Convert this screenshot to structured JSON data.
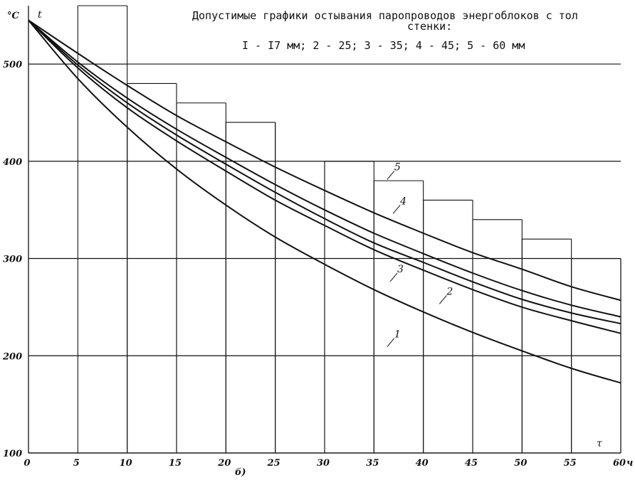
{
  "chart_data": {
    "type": "line",
    "title_line1": "Допустимые графики остывания паропроводов энергоблоков с тол",
    "title_line2": "стенки:",
    "subtitle": "I - I7 мм; 2 - 25; 3 - 35; 4 - 45; 5 - 60 мм",
    "x_unit": "ч",
    "x_symbol": "τ",
    "y_unit": "°С",
    "y_symbol": "t",
    "caption": "б)",
    "xlim": [
      0,
      60
    ],
    "ylim": [
      100,
      560
    ],
    "x_ticks": [
      "0",
      "5",
      "10",
      "15",
      "20",
      "25",
      "30",
      "35",
      "40",
      "45",
      "50",
      "55",
      "60"
    ],
    "y_ticks": [
      "100",
      "200",
      "300",
      "400",
      "500"
    ],
    "grid": true,
    "step_limits": [
      {
        "from": 5,
        "to": 10,
        "value": 560
      },
      {
        "from": 10,
        "to": 15,
        "value": 480
      },
      {
        "from": 15,
        "to": 20,
        "value": 460
      },
      {
        "from": 20,
        "to": 25,
        "value": 440
      },
      {
        "from": 30,
        "to": 35,
        "value": 400
      },
      {
        "from": 35,
        "to": 40,
        "value": 380
      },
      {
        "from": 40,
        "to": 45,
        "value": 360
      },
      {
        "from": 45,
        "to": 50,
        "value": 340
      },
      {
        "from": 50,
        "to": 55,
        "value": 320
      },
      {
        "from": 55,
        "to": 60,
        "value": 300
      }
    ],
    "step_line_500": {
      "from": 0,
      "to": 10,
      "value": 500
    },
    "x": [
      0,
      5,
      10,
      15,
      20,
      25,
      30,
      35,
      40,
      45,
      50,
      55,
      60
    ],
    "series": [
      {
        "name": "1",
        "values": [
          545,
          485,
          435,
          392,
          355,
          322,
          294,
          268,
          245,
          224,
          205,
          187,
          172
        ]
      },
      {
        "name": "2",
        "values": [
          545,
          496,
          455,
          421,
          390,
          360,
          334,
          309,
          288,
          268,
          250,
          236,
          223
        ]
      },
      {
        "name": "3",
        "values": [
          545,
          499,
          460,
          427,
          397,
          368,
          341,
          316,
          296,
          276,
          258,
          244,
          233
        ]
      },
      {
        "name": "4",
        "values": [
          545,
          502,
          465,
          433,
          404,
          376,
          350,
          326,
          305,
          285,
          267,
          252,
          240
        ]
      },
      {
        "name": "5",
        "values": [
          545,
          511,
          478,
          447,
          420,
          394,
          370,
          347,
          326,
          306,
          289,
          271,
          257
        ]
      }
    ],
    "series_labels": [
      {
        "text": "5",
        "x": 37.2,
        "y": 390
      },
      {
        "text": "4",
        "x": 37.8,
        "y": 355
      },
      {
        "text": "3",
        "x": 37.5,
        "y": 285
      },
      {
        "text": "2",
        "x": 42.5,
        "y": 262
      },
      {
        "text": "1",
        "x": 37.2,
        "y": 218
      }
    ]
  }
}
